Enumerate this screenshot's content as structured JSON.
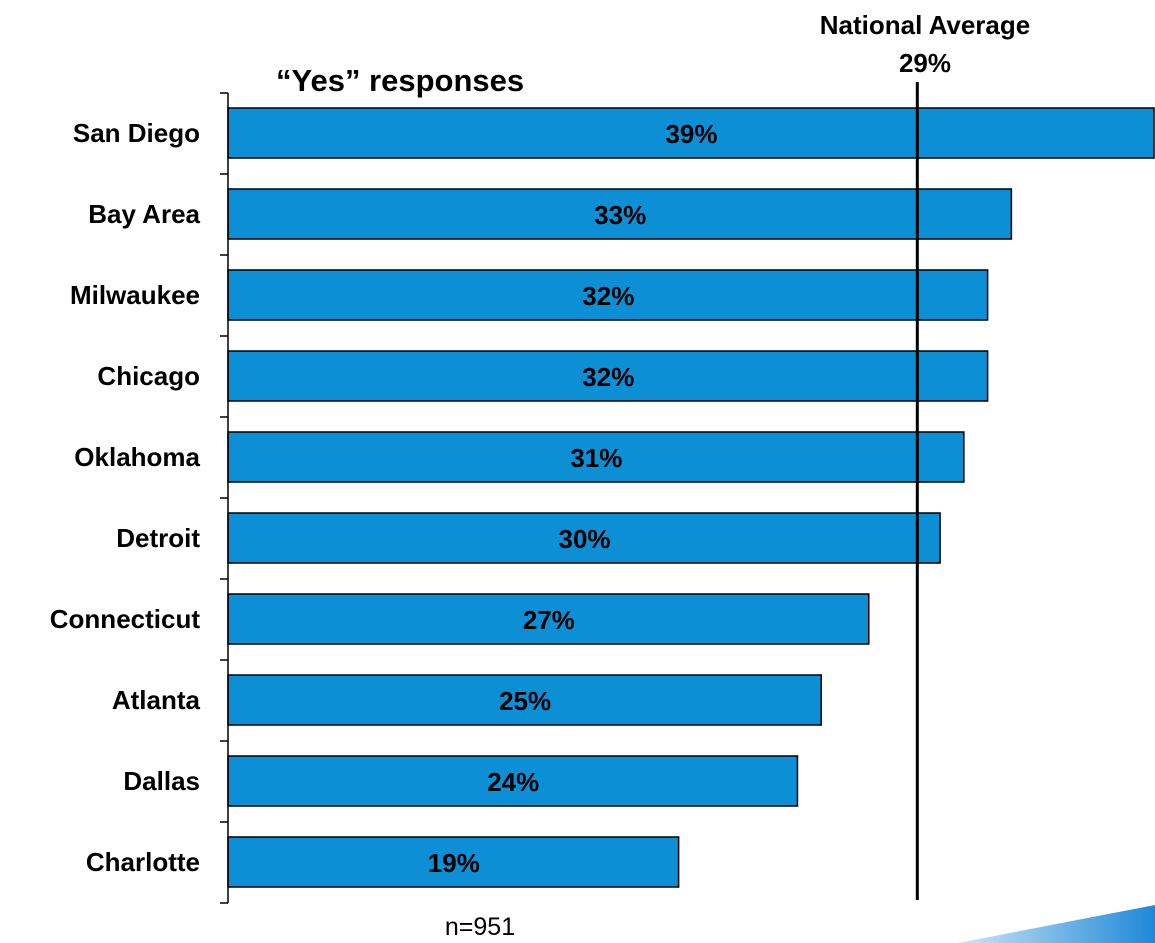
{
  "chart_data": {
    "type": "bar",
    "orientation": "horizontal",
    "subtitle": "“Yes” responses",
    "categories": [
      "San Diego",
      "Bay Area",
      "Milwaukee",
      "Chicago",
      "Oklahoma",
      "Detroit",
      "Connecticut",
      "Atlanta",
      "Dallas",
      "Charlotte"
    ],
    "values": [
      39,
      33,
      32,
      32,
      31,
      30,
      27,
      25,
      24,
      19
    ],
    "data_labels": [
      "39%",
      "33%",
      "32%",
      "32%",
      "31%",
      "30%",
      "27%",
      "25%",
      "24%",
      "19%"
    ],
    "value_unit": "%",
    "xlim": [
      0,
      39
    ],
    "reference_line": {
      "label": "National Average",
      "value_label": "29%",
      "value": 29
    },
    "note": "n=951",
    "legend": "none",
    "grid": false
  },
  "colors": {
    "bar_fill": "#0d8fd6",
    "bar_stroke": "#000000",
    "axis": "#000000",
    "accent_shape": "#1e88d8"
  }
}
